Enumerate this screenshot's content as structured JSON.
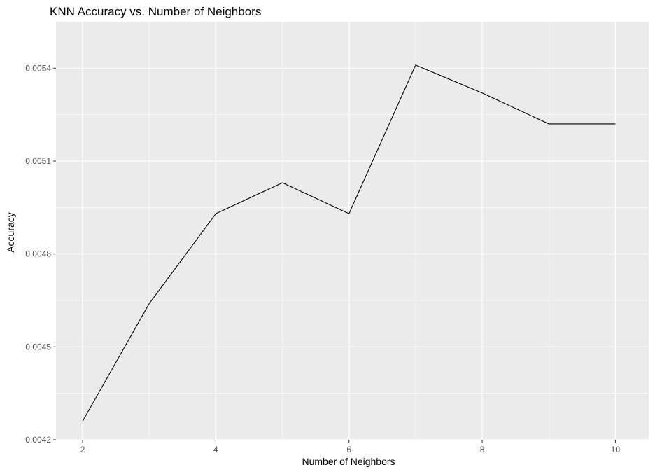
{
  "chart_data": {
    "type": "line",
    "title": "KNN Accuracy vs. Number of Neighbors",
    "xlabel": "Number of Neighbors",
    "ylabel": "Accuracy",
    "x": [
      2,
      3,
      4,
      5,
      6,
      7,
      8,
      9,
      10
    ],
    "series": [
      {
        "values": [
          0.00426,
          0.00464,
          0.00493,
          0.00503,
          0.00493,
          0.00541,
          0.00532,
          0.00522,
          0.00522
        ]
      }
    ],
    "xlim": [
      1.6,
      10.5
    ],
    "ylim": [
      0.0042,
      0.00555
    ],
    "xticks": [
      2,
      4,
      6,
      8,
      10
    ],
    "xtick_labels": [
      "2",
      "4",
      "6",
      "8",
      "10"
    ],
    "yticks": [
      0.0042,
      0.0045,
      0.0048,
      0.0051,
      0.0054
    ],
    "ytick_labels": [
      "0.0042",
      "0.0045",
      "0.0048",
      "0.0051",
      "0.0054"
    ],
    "grid": true,
    "panel_color": "#ebebeb",
    "grid_color": "#ffffff",
    "line_color": "#000000"
  }
}
